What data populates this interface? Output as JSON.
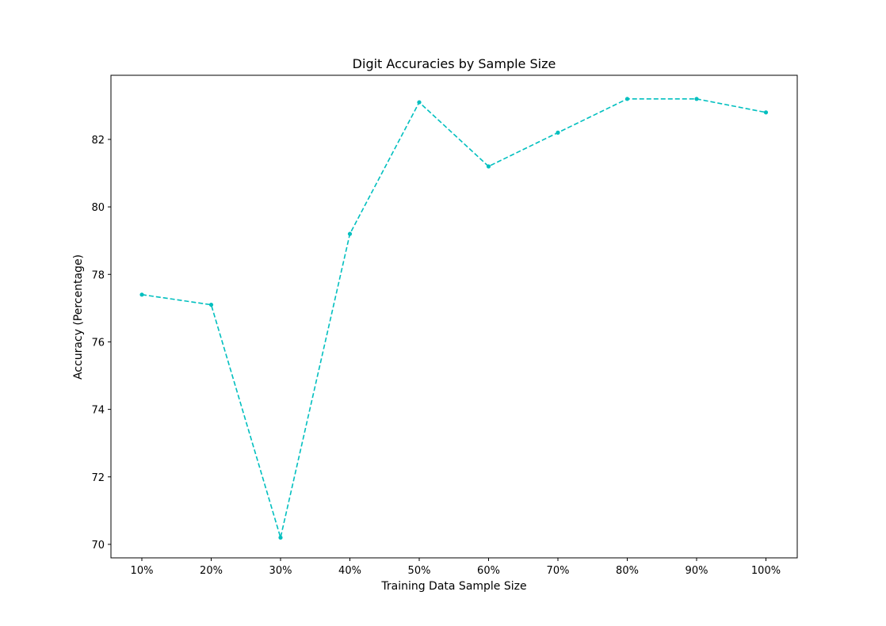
{
  "chart_data": {
    "type": "line",
    "title": "Digit Accuracies by Sample Size",
    "xlabel": "Training Data Sample Size",
    "ylabel": "Accuracy (Percentage)",
    "categories": [
      "10%",
      "20%",
      "30%",
      "40%",
      "50%",
      "60%",
      "70%",
      "80%",
      "90%",
      "100%"
    ],
    "series": [
      {
        "values": [
          77.4,
          77.1,
          70.2,
          79.2,
          83.1,
          81.2,
          82.2,
          83.2,
          83.2,
          82.8
        ],
        "color": "#00bfbf",
        "line_style": "dashed",
        "marker": "dot"
      }
    ],
    "ylim": [
      69.6,
      83.9
    ],
    "yticks": [
      70,
      72,
      74,
      76,
      78,
      80,
      82
    ],
    "grid": false,
    "legend": "none"
  }
}
